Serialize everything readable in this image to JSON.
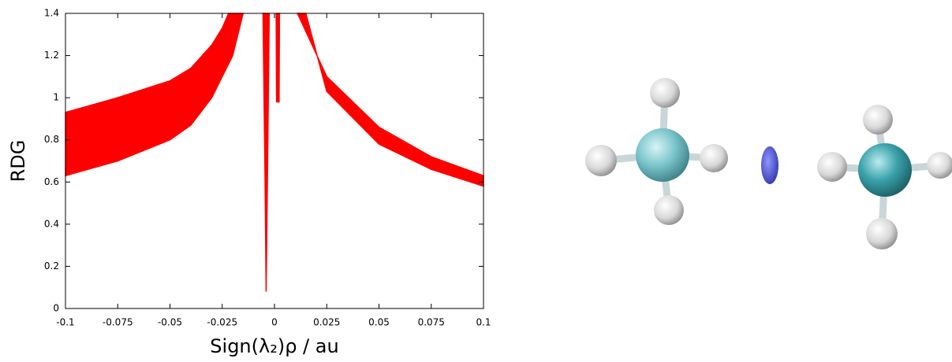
{
  "chart_data": {
    "type": "area",
    "x_label": "Sign(λ₂)ρ / au",
    "y_label": "RDG",
    "color": "#ff0000",
    "xlim": [
      -0.1,
      0.1
    ],
    "xticks": [
      -0.1,
      -0.075,
      -0.05,
      -0.025,
      0,
      0.025,
      0.05,
      0.075,
      0.1
    ],
    "ylim": [
      0,
      1.4
    ],
    "yticks": [
      0,
      0.2,
      0.4,
      0.6,
      0.8,
      1,
      1.2,
      1.4
    ],
    "regions": [
      {
        "x": [
          -0.1,
          -0.075,
          -0.05,
          -0.04,
          -0.03,
          -0.025,
          -0.022,
          -0.015,
          -0.02,
          -0.03,
          -0.04,
          -0.05,
          -0.075,
          -0.1
        ],
        "y": [
          0.93,
          1.0,
          1.08,
          1.14,
          1.25,
          1.33,
          1.4,
          1.4,
          1.2,
          1.0,
          0.87,
          0.8,
          0.7,
          0.63
        ]
      },
      {
        "x": [
          0.011,
          0.025,
          0.05,
          0.075,
          0.1,
          0.1,
          0.075,
          0.05,
          0.025,
          0.015
        ],
        "y": [
          1.4,
          1.1,
          0.86,
          0.72,
          0.63,
          0.58,
          0.66,
          0.78,
          1.03,
          1.4
        ]
      },
      {
        "x": [
          -0.0055,
          -0.0045,
          -0.004,
          -0.0035,
          -0.0025
        ],
        "y": [
          1.4,
          0.6,
          0.08,
          0.5,
          1.4
        ]
      },
      {
        "x": [
          0.0008,
          0.001,
          0.0022,
          0.0024
        ],
        "y": [
          1.4,
          0.98,
          0.98,
          1.4
        ]
      }
    ]
  }
}
